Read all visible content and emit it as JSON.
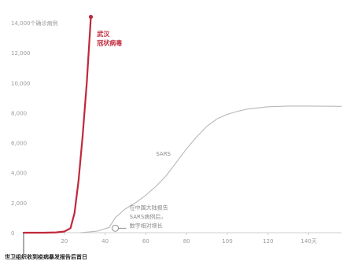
{
  "chart_data": {
    "type": "line",
    "ylabel": "14,000个确诊病例",
    "xcaption": "世卫组织收到疫病暴发报告后首日",
    "x_ticks": [
      20,
      40,
      60,
      80,
      100,
      120,
      "140天"
    ],
    "y_ticks": [
      "0",
      "2,000",
      "4,000",
      "6,000",
      "8,000",
      "10,000",
      "12,000",
      "14,000"
    ],
    "xlim": [
      0,
      156
    ],
    "ylim": [
      0,
      15000
    ],
    "grid": false,
    "series": [
      {
        "name": "武汉冠状病毒",
        "color": "#c0283a",
        "x": [
          0,
          10,
          16,
          20,
          23,
          25,
          27,
          29,
          31,
          32,
          33
        ],
        "y": [
          0,
          0,
          20,
          80,
          300,
          1300,
          3500,
          6500,
          10000,
          12200,
          14400
        ]
      },
      {
        "name": "SARS",
        "color": "#b8b8b8",
        "x": [
          28,
          36,
          42,
          45,
          50,
          55,
          60,
          65,
          70,
          75,
          80,
          85,
          90,
          95,
          100,
          105,
          110,
          120,
          130,
          140,
          156
        ],
        "y": [
          0,
          100,
          350,
          1000,
          1600,
          2000,
          2500,
          3100,
          3800,
          4700,
          5600,
          6400,
          7100,
          7600,
          7900,
          8100,
          8250,
          8400,
          8450,
          8450,
          8430
        ]
      }
    ],
    "annotations": {
      "red_label_line1": "武汉",
      "red_label_line2": "冠状病毒",
      "sars_label": "SARS",
      "note_line1": "在中国大陆报告",
      "note_line2": "SARS病例后，",
      "note_line3": "数字相对增长",
      "note_marker": {
        "x": 45,
        "y": 300
      }
    }
  }
}
